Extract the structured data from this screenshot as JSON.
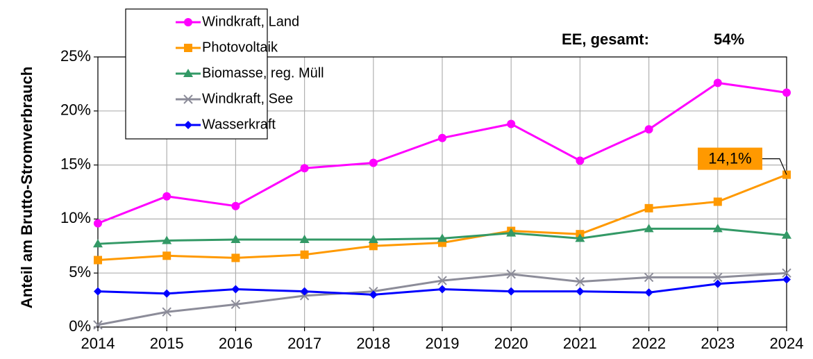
{
  "chart_data": {
    "type": "line",
    "y_label": "Anteil am Brutto-Stromverbrauch",
    "annotations": [
      "EE, gesamt:",
      "54%"
    ],
    "x": [
      2014,
      2015,
      2016,
      2017,
      2018,
      2019,
      2020,
      2021,
      2022,
      2023,
      2024
    ],
    "xlim": [
      2014,
      2024
    ],
    "xticks": [
      2014,
      2015,
      2016,
      2017,
      2018,
      2019,
      2020,
      2021,
      2022,
      2023,
      2024
    ],
    "ylim": [
      0,
      25
    ],
    "yticks": [
      {
        "value": 0,
        "label": "0%"
      },
      {
        "value": 5,
        "label": "5%"
      },
      {
        "value": 10,
        "label": "10%"
      },
      {
        "value": 15,
        "label": "15%"
      },
      {
        "value": 20,
        "label": "20%"
      },
      {
        "value": 25,
        "label": "25%"
      }
    ],
    "grid": true,
    "legend": "upper left",
    "series": [
      {
        "name": "Windkraft, Land",
        "color": "#ff00ff",
        "marker": "circle",
        "values": [
          9.6,
          12.1,
          11.2,
          14.7,
          15.2,
          17.5,
          18.8,
          15.4,
          18.3,
          22.6,
          21.7
        ]
      },
      {
        "name": "Photovoltaik",
        "color": "#ff9900",
        "marker": "square",
        "values": [
          6.2,
          6.6,
          6.4,
          6.7,
          7.5,
          7.8,
          8.9,
          8.6,
          11.0,
          11.6,
          14.1
        ],
        "value_labels": [
          null,
          null,
          null,
          null,
          null,
          null,
          null,
          null,
          null,
          null,
          "14,1%"
        ]
      },
      {
        "name": "Biomasse, reg. Müll",
        "color": "#339966",
        "marker": "triangle",
        "values": [
          7.7,
          8.0,
          8.1,
          8.1,
          8.1,
          8.2,
          8.7,
          8.2,
          9.1,
          9.1,
          8.5
        ]
      },
      {
        "name": "Windkraft, See",
        "color": "#8c8c99",
        "marker": "x",
        "values": [
          0.2,
          1.4,
          2.1,
          2.9,
          3.3,
          4.3,
          4.9,
          4.2,
          4.6,
          4.6,
          5.0
        ]
      },
      {
        "name": "Wasserkraft",
        "color": "#0000ff",
        "marker": "diamond",
        "values": [
          3.3,
          3.1,
          3.5,
          3.3,
          3.0,
          3.5,
          3.3,
          3.3,
          3.2,
          4.0,
          4.4
        ]
      }
    ]
  }
}
